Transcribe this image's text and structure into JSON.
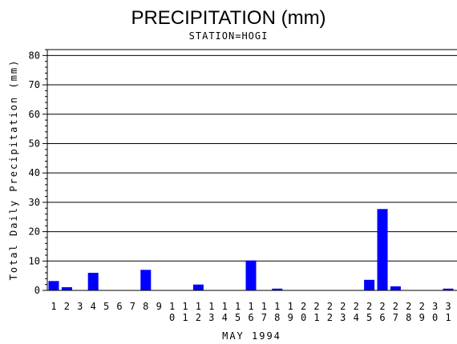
{
  "chart_data": {
    "type": "bar",
    "title": "PRECIPITATION (mm)",
    "subtitle": "STATION=HOGI",
    "xlabel": "MAY 1994",
    "ylabel": "Total Daily Precipitation (mm)",
    "ylim": [
      0,
      82
    ],
    "yticks": [
      0,
      10,
      20,
      30,
      40,
      50,
      60,
      70,
      80
    ],
    "grid": true,
    "categories": [
      "1",
      "2",
      "3",
      "4",
      "5",
      "6",
      "7",
      "8",
      "9",
      "10",
      "11",
      "12",
      "13",
      "14",
      "15",
      "16",
      "17",
      "18",
      "19",
      "20",
      "21",
      "22",
      "23",
      "24",
      "25",
      "26",
      "27",
      "28",
      "29",
      "30",
      "31"
    ],
    "series": [
      {
        "values": [
          3.2,
          1.1,
          0,
          6.0,
          0,
          0,
          0,
          7.0,
          0,
          0,
          0,
          2.0,
          0,
          0,
          0,
          10.2,
          0,
          0.6,
          0,
          0,
          0,
          0,
          0,
          0,
          3.6,
          27.7,
          1.4,
          0,
          0,
          0,
          0.6
        ]
      }
    ],
    "bar_color": "#0000ff"
  }
}
